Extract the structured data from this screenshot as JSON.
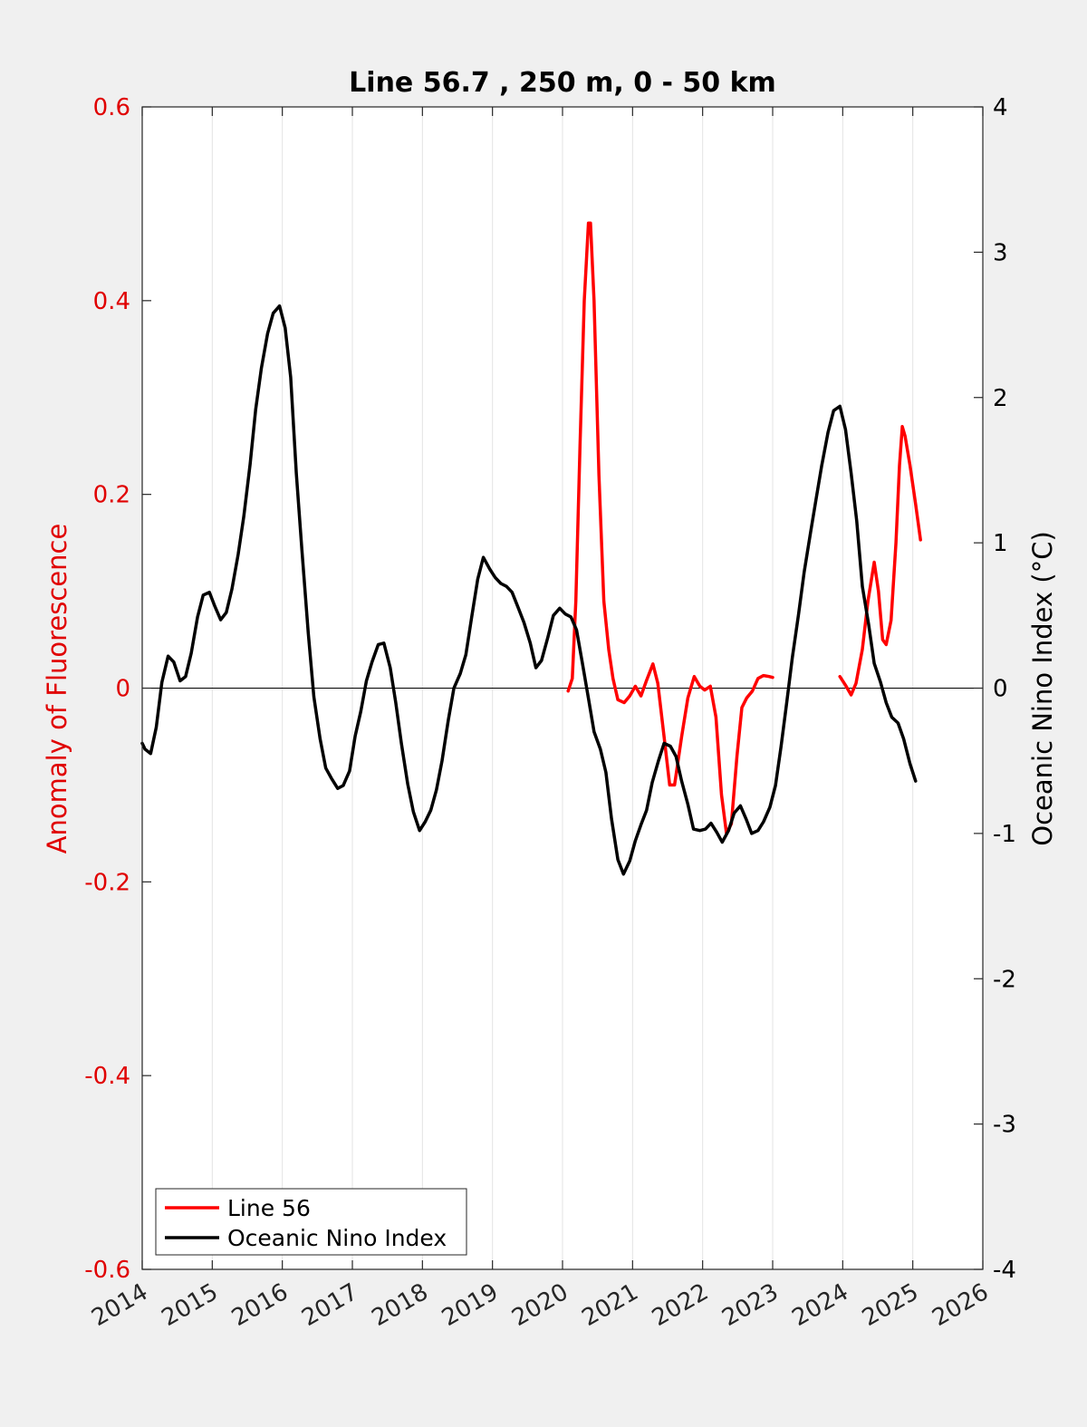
{
  "chart_data": {
    "type": "line",
    "title": "Line 56.7 , 250 m, 0 - 50 km",
    "xlabel": "",
    "xlim": [
      2014,
      2026
    ],
    "x_ticks": [
      "2014",
      "2015",
      "2016",
      "2017",
      "2018",
      "2019",
      "2020",
      "2021",
      "2022",
      "2023",
      "2024",
      "2025",
      "2026"
    ],
    "y_left": {
      "label": "Anomaly of Fluorescence",
      "ylim": [
        -0.6,
        0.6
      ],
      "ticks": [
        "-0.6",
        "-0.4",
        "-0.2",
        "0",
        "0.2",
        "0.4",
        "0.6"
      ],
      "color": "#e00000"
    },
    "y_right": {
      "label": "Oceanic Nino Index (°C)",
      "ylim": [
        -4,
        4
      ],
      "ticks": [
        "-4",
        "-3",
        "-2",
        "-1",
        "0",
        "1",
        "2",
        "3",
        "4"
      ],
      "color": "#000000"
    },
    "grid": "vertical",
    "legend_position": "bottom-left",
    "series": [
      {
        "name": "Line 56",
        "axis": "left",
        "color": "#ff0000",
        "segments": [
          [
            [
              2020.08,
              -0.003
            ],
            [
              2020.14,
              0.01
            ],
            [
              2020.19,
              0.09
            ],
            [
              2020.25,
              0.25
            ],
            [
              2020.31,
              0.4
            ],
            [
              2020.37,
              0.48
            ],
            [
              2020.4,
              0.48
            ],
            [
              2020.45,
              0.4
            ],
            [
              2020.52,
              0.22
            ],
            [
              2020.59,
              0.09
            ],
            [
              2020.66,
              0.04
            ],
            [
              2020.72,
              0.01
            ],
            [
              2020.79,
              -0.012
            ],
            [
              2020.88,
              -0.015
            ],
            [
              2020.96,
              -0.008
            ],
            [
              2021.04,
              0.002
            ],
            [
              2021.12,
              -0.008
            ],
            [
              2021.2,
              0.008
            ],
            [
              2021.29,
              0.025
            ],
            [
              2021.36,
              0.005
            ],
            [
              2021.45,
              -0.05
            ],
            [
              2021.53,
              -0.1
            ],
            [
              2021.6,
              -0.1
            ],
            [
              2021.7,
              -0.05
            ],
            [
              2021.79,
              -0.01
            ],
            [
              2021.88,
              0.012
            ],
            [
              2021.96,
              0.002
            ],
            [
              2022.03,
              -0.002
            ],
            [
              2022.11,
              0.002
            ],
            [
              2022.19,
              -0.03
            ],
            [
              2022.27,
              -0.11
            ],
            [
              2022.34,
              -0.15
            ],
            [
              2022.41,
              -0.14
            ],
            [
              2022.49,
              -0.07
            ],
            [
              2022.56,
              -0.02
            ],
            [
              2022.63,
              -0.01
            ],
            [
              2022.71,
              -0.003
            ],
            [
              2022.79,
              0.01
            ],
            [
              2022.87,
              0.013
            ],
            [
              2022.95,
              0.012
            ],
            [
              2023.0,
              0.011
            ]
          ],
          [
            [
              2023.96,
              0.012
            ],
            [
              2024.04,
              0.003
            ],
            [
              2024.12,
              -0.007
            ],
            [
              2024.19,
              0.005
            ],
            [
              2024.28,
              0.04
            ],
            [
              2024.36,
              0.09
            ],
            [
              2024.45,
              0.13
            ],
            [
              2024.51,
              0.1
            ],
            [
              2024.57,
              0.05
            ],
            [
              2024.62,
              0.045
            ],
            [
              2024.69,
              0.07
            ],
            [
              2024.76,
              0.15
            ],
            [
              2024.81,
              0.23
            ],
            [
              2024.85,
              0.27
            ],
            [
              2024.89,
              0.26
            ],
            [
              2024.96,
              0.23
            ],
            [
              2025.04,
              0.19
            ],
            [
              2025.11,
              0.153
            ]
          ]
        ]
      },
      {
        "name": "Oceanic Nino Index",
        "axis": "right",
        "color": "#000000",
        "points": [
          [
            2014.0,
            -0.38
          ],
          [
            2014.04,
            -0.42
          ],
          [
            2014.12,
            -0.45
          ],
          [
            2014.2,
            -0.27
          ],
          [
            2014.28,
            0.04
          ],
          [
            2014.37,
            0.22
          ],
          [
            2014.45,
            0.18
          ],
          [
            2014.54,
            0.05
          ],
          [
            2014.62,
            0.08
          ],
          [
            2014.7,
            0.24
          ],
          [
            2014.79,
            0.49
          ],
          [
            2014.87,
            0.64
          ],
          [
            2014.96,
            0.66
          ],
          [
            2015.04,
            0.56
          ],
          [
            2015.12,
            0.47
          ],
          [
            2015.2,
            0.52
          ],
          [
            2015.28,
            0.68
          ],
          [
            2015.37,
            0.92
          ],
          [
            2015.45,
            1.18
          ],
          [
            2015.54,
            1.54
          ],
          [
            2015.62,
            1.92
          ],
          [
            2015.7,
            2.2
          ],
          [
            2015.79,
            2.44
          ],
          [
            2015.87,
            2.58
          ],
          [
            2015.96,
            2.63
          ],
          [
            2016.04,
            2.48
          ],
          [
            2016.12,
            2.14
          ],
          [
            2016.2,
            1.48
          ],
          [
            2016.28,
            0.95
          ],
          [
            2016.37,
            0.38
          ],
          [
            2016.45,
            -0.06
          ],
          [
            2016.54,
            -0.35
          ],
          [
            2016.62,
            -0.55
          ],
          [
            2016.7,
            -0.62
          ],
          [
            2016.79,
            -0.69
          ],
          [
            2016.87,
            -0.67
          ],
          [
            2016.96,
            -0.57
          ],
          [
            2017.04,
            -0.33
          ],
          [
            2017.12,
            -0.16
          ],
          [
            2017.2,
            0.05
          ],
          [
            2017.28,
            0.18
          ],
          [
            2017.37,
            0.3
          ],
          [
            2017.45,
            0.31
          ],
          [
            2017.54,
            0.14
          ],
          [
            2017.62,
            -0.1
          ],
          [
            2017.7,
            -0.38
          ],
          [
            2017.79,
            -0.66
          ],
          [
            2017.87,
            -0.85
          ],
          [
            2017.96,
            -0.98
          ],
          [
            2018.04,
            -0.92
          ],
          [
            2018.12,
            -0.84
          ],
          [
            2018.2,
            -0.7
          ],
          [
            2018.28,
            -0.5
          ],
          [
            2018.37,
            -0.22
          ],
          [
            2018.45,
            0.0
          ],
          [
            2018.54,
            0.1
          ],
          [
            2018.62,
            0.23
          ],
          [
            2018.7,
            0.48
          ],
          [
            2018.79,
            0.75
          ],
          [
            2018.87,
            0.9
          ],
          [
            2018.96,
            0.82
          ],
          [
            2019.04,
            0.76
          ],
          [
            2019.12,
            0.72
          ],
          [
            2019.2,
            0.7
          ],
          [
            2019.28,
            0.66
          ],
          [
            2019.37,
            0.55
          ],
          [
            2019.45,
            0.45
          ],
          [
            2019.54,
            0.31
          ],
          [
            2019.62,
            0.14
          ],
          [
            2019.7,
            0.19
          ],
          [
            2019.79,
            0.35
          ],
          [
            2019.87,
            0.5
          ],
          [
            2019.96,
            0.55
          ],
          [
            2020.04,
            0.51
          ],
          [
            2020.12,
            0.49
          ],
          [
            2020.2,
            0.4
          ],
          [
            2020.28,
            0.18
          ],
          [
            2020.37,
            -0.07
          ],
          [
            2020.45,
            -0.3
          ],
          [
            2020.54,
            -0.42
          ],
          [
            2020.62,
            -0.58
          ],
          [
            2020.7,
            -0.9
          ],
          [
            2020.79,
            -1.18
          ],
          [
            2020.87,
            -1.28
          ],
          [
            2020.96,
            -1.19
          ],
          [
            2021.04,
            -1.05
          ],
          [
            2021.12,
            -0.94
          ],
          [
            2021.2,
            -0.84
          ],
          [
            2021.28,
            -0.65
          ],
          [
            2021.37,
            -0.5
          ],
          [
            2021.45,
            -0.38
          ],
          [
            2021.54,
            -0.4
          ],
          [
            2021.62,
            -0.47
          ],
          [
            2021.7,
            -0.64
          ],
          [
            2021.79,
            -0.8
          ],
          [
            2021.87,
            -0.97
          ],
          [
            2021.96,
            -0.98
          ],
          [
            2022.04,
            -0.97
          ],
          [
            2022.12,
            -0.93
          ],
          [
            2022.2,
            -0.99
          ],
          [
            2022.28,
            -1.06
          ],
          [
            2022.37,
            -0.98
          ],
          [
            2022.45,
            -0.86
          ],
          [
            2022.54,
            -0.81
          ],
          [
            2022.62,
            -0.9
          ],
          [
            2022.7,
            -1.0
          ],
          [
            2022.79,
            -0.98
          ],
          [
            2022.87,
            -0.92
          ],
          [
            2022.96,
            -0.82
          ],
          [
            2023.04,
            -0.67
          ],
          [
            2023.12,
            -0.4
          ],
          [
            2023.2,
            -0.1
          ],
          [
            2023.28,
            0.21
          ],
          [
            2023.37,
            0.51
          ],
          [
            2023.45,
            0.8
          ],
          [
            2023.54,
            1.07
          ],
          [
            2023.62,
            1.3
          ],
          [
            2023.7,
            1.53
          ],
          [
            2023.79,
            1.76
          ],
          [
            2023.87,
            1.91
          ],
          [
            2023.96,
            1.94
          ],
          [
            2024.04,
            1.78
          ],
          [
            2024.12,
            1.48
          ],
          [
            2024.2,
            1.15
          ],
          [
            2024.28,
            0.7
          ],
          [
            2024.37,
            0.44
          ],
          [
            2024.45,
            0.17
          ],
          [
            2024.54,
            0.04
          ],
          [
            2024.62,
            -0.1
          ],
          [
            2024.7,
            -0.2
          ],
          [
            2024.79,
            -0.24
          ],
          [
            2024.87,
            -0.35
          ],
          [
            2024.96,
            -0.52
          ],
          [
            2025.04,
            -0.64
          ]
        ]
      }
    ]
  }
}
